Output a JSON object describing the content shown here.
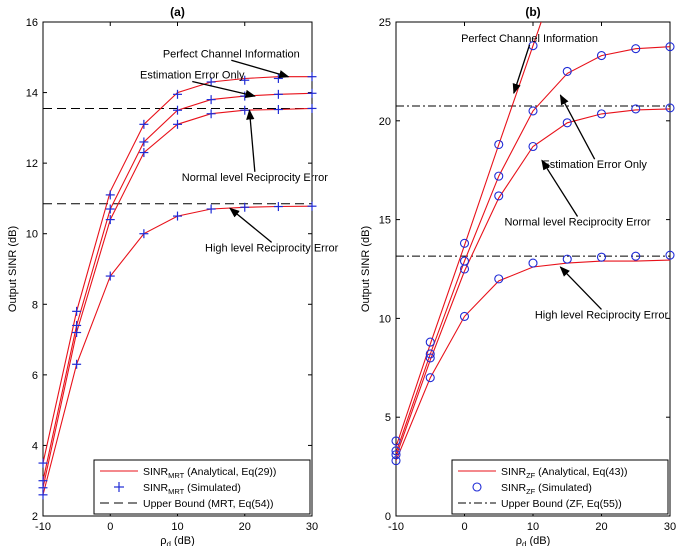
{
  "chart_data": [
    {
      "type": "line",
      "panel_label": "(a)",
      "xlabel": "ρ_d (dB)",
      "ylabel": "Output SINR (dB)",
      "xlim": [
        -10,
        30
      ],
      "ylim": [
        2,
        16
      ],
      "xticks": [
        -10,
        0,
        10,
        20,
        30
      ],
      "yticks": [
        2,
        4,
        6,
        8,
        10,
        12,
        14,
        16
      ],
      "grid": false,
      "legend_position": "bottom-right",
      "legend": [
        {
          "prefix": "SINR",
          "sub": "MRT",
          "suffix": " (Analytical, Eq(29))",
          "style": "solid-red"
        },
        {
          "prefix": "SINR",
          "sub": "MRT",
          "suffix": " (Simulated)",
          "style": "blue-plus"
        },
        {
          "prefix": "Upper Bound (MRT, Eq(54))",
          "sub": "",
          "suffix": "",
          "style": "dashed-black"
        }
      ],
      "marker": "plus",
      "analytical_x": [
        -10,
        -5,
        0,
        5,
        10,
        15,
        20,
        25,
        30
      ],
      "simulated_x": [
        -10,
        -5,
        0,
        5,
        10,
        15,
        20,
        25,
        30
      ],
      "series": [
        {
          "name": "Perfect Channel Information",
          "analytical": [
            3.5,
            7.8,
            11.2,
            13.1,
            14.0,
            14.3,
            14.4,
            14.45,
            14.45
          ],
          "simulated": [
            3.5,
            7.8,
            11.1,
            13.1,
            13.95,
            14.3,
            14.35,
            14.4,
            14.45
          ]
        },
        {
          "name": "Estimation Error Only",
          "analytical": [
            3.0,
            7.4,
            10.7,
            12.6,
            13.5,
            13.8,
            13.9,
            13.95,
            13.98
          ],
          "simulated": [
            3.0,
            7.4,
            10.7,
            12.6,
            13.5,
            13.8,
            13.9,
            13.95,
            13.98
          ]
        },
        {
          "name": "Normal level Reciprocity Error",
          "analytical": [
            2.8,
            7.2,
            10.4,
            12.3,
            13.1,
            13.4,
            13.5,
            13.52,
            13.55
          ],
          "simulated": [
            2.8,
            7.2,
            10.4,
            12.3,
            13.1,
            13.4,
            13.5,
            13.52,
            13.55
          ]
        },
        {
          "name": "High level Reciprocity Error",
          "analytical": [
            2.6,
            6.3,
            8.8,
            10.0,
            10.5,
            10.7,
            10.75,
            10.77,
            10.78
          ],
          "simulated": [
            2.6,
            6.3,
            8.8,
            10.0,
            10.5,
            10.7,
            10.75,
            10.77,
            10.78
          ]
        }
      ],
      "upper_bounds": [
        13.55,
        10.85
      ],
      "annotations": [
        {
          "text": "Perfect Channel Information",
          "tx": 18,
          "ty": 15.0,
          "ax": 26.5,
          "ay": 14.45
        },
        {
          "text": "Estimation Error Only",
          "tx": 12.2,
          "ty": 14.4,
          "ax": 21.5,
          "ay": 13.9
        },
        {
          "text": "Normal level Reciprocity Error",
          "tx": 21.5,
          "ty": 11.5,
          "ax": 20.7,
          "ay": 13.5
        },
        {
          "text": "High level Reciprocity Error",
          "tx": 24,
          "ty": 9.5,
          "ax": 17.8,
          "ay": 10.72
        }
      ]
    },
    {
      "type": "line",
      "panel_label": "(b)",
      "xlabel": "ρ_d (dB)",
      "ylabel": "Output SINR (dB)",
      "xlim": [
        -10,
        30
      ],
      "ylim": [
        0,
        25
      ],
      "xticks": [
        -10,
        0,
        10,
        20,
        30
      ],
      "yticks": [
        0,
        5,
        10,
        15,
        20,
        25
      ],
      "grid": false,
      "legend_position": "bottom-right",
      "legend": [
        {
          "prefix": "SINR",
          "sub": "ZF",
          "suffix": " (Analytical, Eq(43))",
          "style": "solid-red"
        },
        {
          "prefix": "SINR",
          "sub": "ZF",
          "suffix": " (Simulated)",
          "style": "blue-circle"
        },
        {
          "prefix": "Upper Bound (ZF, Eq(55))",
          "sub": "",
          "suffix": "",
          "style": "dashdot-black"
        }
      ],
      "marker": "circle",
      "analytical_x": [
        -10,
        -5,
        0,
        5,
        10,
        15,
        20,
        25,
        30
      ],
      "simulated_x": [
        -10,
        -5,
        0,
        5,
        10,
        15,
        20,
        25,
        30
      ],
      "series": [
        {
          "name": "Perfect Channel Information",
          "analytical": [
            3.5,
            8.7,
            13.7,
            18.8,
            23.8,
            null,
            null,
            null,
            null
          ],
          "simulated": [
            3.8,
            8.8,
            13.8,
            18.8,
            23.8,
            null,
            null,
            null,
            null
          ]
        },
        {
          "name": "Estimation Error Only",
          "analytical": [
            3.2,
            8.2,
            12.9,
            17.2,
            20.5,
            22.4,
            23.3,
            23.65,
            23.75
          ],
          "simulated": [
            3.3,
            8.2,
            12.9,
            17.2,
            20.5,
            22.5,
            23.3,
            23.65,
            23.75
          ]
        },
        {
          "name": "Normal level Reciprocity Error",
          "analytical": [
            3.0,
            7.9,
            12.4,
            16.1,
            18.7,
            19.9,
            20.35,
            20.55,
            20.6
          ],
          "simulated": [
            3.1,
            8.0,
            12.5,
            16.2,
            18.7,
            19.9,
            20.35,
            20.6,
            20.65
          ]
        },
        {
          "name": "High level Reciprocity Error",
          "analytical": [
            2.8,
            7.0,
            10.1,
            11.9,
            12.6,
            12.8,
            12.9,
            12.9,
            12.95
          ],
          "simulated": [
            2.8,
            7.0,
            10.1,
            12.0,
            12.8,
            13.0,
            13.1,
            13.15,
            13.2
          ]
        }
      ],
      "upper_bounds": [
        20.75,
        13.15
      ],
      "annotations": [
        {
          "text": "Perfect Channel Information",
          "tx": 9.5,
          "ty": 24.0,
          "ax": 7.2,
          "ay": 21.4
        },
        {
          "text": "Estimation Error Only",
          "tx": 19,
          "ty": 17.6,
          "ax": 14,
          "ay": 21.3
        },
        {
          "text": "Normal level Reciprocity Error",
          "tx": 16.5,
          "ty": 14.7,
          "ax": 11.3,
          "ay": 18.0
        },
        {
          "text": "High level Reciprocity Error",
          "tx": 20,
          "ty": 10.0,
          "ax": 14,
          "ay": 12.6
        }
      ]
    }
  ]
}
